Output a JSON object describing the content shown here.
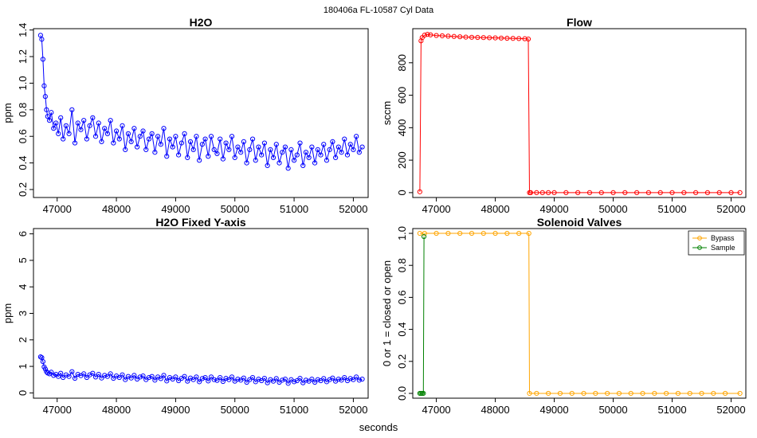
{
  "figure": {
    "supertitle": "180406a   FL-10587   Cyl Data",
    "bottom_label": "seconds"
  },
  "colors": {
    "h2o": "#0000ff",
    "flow": "#ff0000",
    "bypass": "#ffa500",
    "sample": "#008000"
  },
  "chart_data": [
    {
      "id": "h2o",
      "type": "line",
      "title": "H2O",
      "xlabel": "",
      "ylabel": "ppm",
      "xlim": [
        46600,
        52250
      ],
      "ylim": [
        0.14,
        1.41
      ],
      "x_ticks": [
        47000,
        48000,
        49000,
        50000,
        51000,
        52000
      ],
      "y_ticks": [
        0.2,
        0.4,
        0.6,
        0.8,
        1.0,
        1.2,
        1.4
      ],
      "markers": "open-circle",
      "series": [
        {
          "x": [
            46720,
            46740,
            46760,
            46780,
            46800,
            46820,
            46840,
            46870,
            46900,
            46940,
            46980,
            47020,
            47060,
            47100,
            47150,
            47200,
            47250,
            47300,
            47350,
            47400,
            47450,
            47500,
            47550,
            47600,
            47650,
            47700,
            47750,
            47800,
            47850,
            47900,
            47950,
            48000,
            48050,
            48100,
            48150,
            48200,
            48250,
            48300,
            48350,
            48400,
            48450,
            48500,
            48550,
            48600,
            48650,
            48700,
            48750,
            48800,
            48850,
            48900,
            48950,
            49000,
            49050,
            49100,
            49150,
            49200,
            49250,
            49300,
            49350,
            49400,
            49450,
            49500,
            49550,
            49600,
            49650,
            49700,
            49750,
            49800,
            49850,
            49900,
            49950,
            50000,
            50050,
            50100,
            50150,
            50200,
            50250,
            50300,
            50350,
            50400,
            50450,
            50500,
            50550,
            50600,
            50650,
            50700,
            50750,
            50800,
            50850,
            50900,
            50950,
            51000,
            51050,
            51100,
            51150,
            51200,
            51250,
            51300,
            51350,
            51400,
            51450,
            51500,
            51550,
            51600,
            51650,
            51700,
            51750,
            51800,
            51850,
            51900,
            51950,
            52000,
            52050,
            52100,
            52150
          ],
          "y": [
            1.36,
            1.33,
            1.18,
            0.98,
            0.9,
            0.8,
            0.75,
            0.72,
            0.78,
            0.66,
            0.7,
            0.62,
            0.74,
            0.58,
            0.68,
            0.62,
            0.8,
            0.55,
            0.7,
            0.65,
            0.72,
            0.58,
            0.68,
            0.74,
            0.6,
            0.7,
            0.56,
            0.66,
            0.62,
            0.72,
            0.55,
            0.64,
            0.58,
            0.68,
            0.5,
            0.62,
            0.56,
            0.66,
            0.52,
            0.6,
            0.64,
            0.5,
            0.58,
            0.62,
            0.48,
            0.6,
            0.54,
            0.66,
            0.45,
            0.58,
            0.52,
            0.6,
            0.46,
            0.55,
            0.62,
            0.44,
            0.56,
            0.5,
            0.6,
            0.42,
            0.54,
            0.58,
            0.45,
            0.6,
            0.5,
            0.47,
            0.58,
            0.43,
            0.55,
            0.5,
            0.6,
            0.44,
            0.52,
            0.48,
            0.56,
            0.4,
            0.5,
            0.58,
            0.42,
            0.52,
            0.46,
            0.55,
            0.38,
            0.5,
            0.44,
            0.54,
            0.4,
            0.48,
            0.52,
            0.36,
            0.5,
            0.42,
            0.46,
            0.55,
            0.38,
            0.48,
            0.44,
            0.52,
            0.4,
            0.5,
            0.46,
            0.54,
            0.42,
            0.5,
            0.56,
            0.44,
            0.52,
            0.48,
            0.58,
            0.46,
            0.54,
            0.5,
            0.6,
            0.48,
            0.52
          ]
        }
      ]
    },
    {
      "id": "flow",
      "type": "line",
      "title": "Flow",
      "xlabel": "",
      "ylabel": "sccm",
      "xlim": [
        46600,
        52250
      ],
      "ylim": [
        -30,
        1010
      ],
      "x_ticks": [
        47000,
        48000,
        49000,
        50000,
        51000,
        52000
      ],
      "y_ticks": [
        0,
        200,
        400,
        600,
        800
      ],
      "markers": "open-circle",
      "series": [
        {
          "x": [
            46720,
            46740,
            46760,
            46800,
            46850,
            46900,
            47000,
            47100,
            47200,
            47300,
            47400,
            47500,
            47600,
            47700,
            47800,
            47900,
            48000,
            48100,
            48200,
            48300,
            48400,
            48500,
            48560,
            48580,
            48600,
            48700,
            48800,
            48900,
            49000,
            49200,
            49400,
            49600,
            49800,
            50000,
            50200,
            50400,
            50600,
            50800,
            51000,
            51200,
            51400,
            51600,
            51800,
            52000,
            52150
          ],
          "y": [
            5,
            935,
            955,
            970,
            975,
            972,
            968,
            966,
            964,
            962,
            960,
            958,
            957,
            956,
            955,
            954,
            953,
            952,
            951,
            950,
            949,
            948,
            946,
            0,
            0,
            0,
            0,
            0,
            0,
            0,
            0,
            0,
            0,
            0,
            0,
            0,
            0,
            0,
            0,
            0,
            0,
            0,
            0,
            0,
            0
          ]
        }
      ]
    },
    {
      "id": "h2o-fixed",
      "type": "line",
      "title": "H2O Fixed Y-axis",
      "xlabel": "",
      "ylabel": "ppm",
      "xlim": [
        46600,
        52250
      ],
      "ylim": [
        -0.2,
        6.2
      ],
      "x_ticks": [
        47000,
        48000,
        49000,
        50000,
        51000,
        52000
      ],
      "y_ticks": [
        0,
        1,
        2,
        3,
        4,
        5,
        6
      ],
      "markers": "open-circle",
      "series": [
        {
          "x": [
            46720,
            46740,
            46760,
            46780,
            46800,
            46820,
            46840,
            46870,
            46900,
            46940,
            46980,
            47020,
            47060,
            47100,
            47150,
            47200,
            47250,
            47300,
            47350,
            47400,
            47450,
            47500,
            47550,
            47600,
            47650,
            47700,
            47750,
            47800,
            47850,
            47900,
            47950,
            48000,
            48050,
            48100,
            48150,
            48200,
            48250,
            48300,
            48350,
            48400,
            48450,
            48500,
            48550,
            48600,
            48650,
            48700,
            48750,
            48800,
            48850,
            48900,
            48950,
            49000,
            49050,
            49100,
            49150,
            49200,
            49250,
            49300,
            49350,
            49400,
            49450,
            49500,
            49550,
            49600,
            49650,
            49700,
            49750,
            49800,
            49850,
            49900,
            49950,
            50000,
            50050,
            50100,
            50150,
            50200,
            50250,
            50300,
            50350,
            50400,
            50450,
            50500,
            50550,
            50600,
            50650,
            50700,
            50750,
            50800,
            50850,
            50900,
            50950,
            51000,
            51050,
            51100,
            51150,
            51200,
            51250,
            51300,
            51350,
            51400,
            51450,
            51500,
            51550,
            51600,
            51650,
            51700,
            51750,
            51800,
            51850,
            51900,
            51950,
            52000,
            52050,
            52100,
            52150
          ],
          "y": [
            1.36,
            1.33,
            1.18,
            0.98,
            0.9,
            0.8,
            0.75,
            0.72,
            0.78,
            0.66,
            0.7,
            0.62,
            0.74,
            0.58,
            0.68,
            0.62,
            0.8,
            0.55,
            0.7,
            0.65,
            0.72,
            0.58,
            0.68,
            0.74,
            0.6,
            0.7,
            0.56,
            0.66,
            0.62,
            0.72,
            0.55,
            0.64,
            0.58,
            0.68,
            0.5,
            0.62,
            0.56,
            0.66,
            0.52,
            0.6,
            0.64,
            0.5,
            0.58,
            0.62,
            0.48,
            0.6,
            0.54,
            0.66,
            0.45,
            0.58,
            0.52,
            0.6,
            0.46,
            0.55,
            0.62,
            0.44,
            0.56,
            0.5,
            0.6,
            0.42,
            0.54,
            0.58,
            0.45,
            0.6,
            0.5,
            0.47,
            0.58,
            0.43,
            0.55,
            0.5,
            0.6,
            0.44,
            0.52,
            0.48,
            0.56,
            0.4,
            0.5,
            0.58,
            0.42,
            0.52,
            0.46,
            0.55,
            0.38,
            0.5,
            0.44,
            0.54,
            0.4,
            0.48,
            0.52,
            0.36,
            0.5,
            0.42,
            0.46,
            0.55,
            0.38,
            0.48,
            0.44,
            0.52,
            0.4,
            0.5,
            0.46,
            0.54,
            0.42,
            0.5,
            0.56,
            0.44,
            0.52,
            0.48,
            0.58,
            0.46,
            0.54,
            0.5,
            0.6,
            0.48,
            0.52
          ]
        }
      ]
    },
    {
      "id": "valves",
      "type": "line",
      "title": "Solenoid Valves",
      "xlabel": "",
      "ylabel": "0 or 1 = closed or open",
      "xlim": [
        46600,
        52250
      ],
      "ylim": [
        -0.03,
        1.03
      ],
      "x_ticks": [
        47000,
        48000,
        49000,
        50000,
        51000,
        52000
      ],
      "y_ticks": [
        0.0,
        0.2,
        0.4,
        0.6,
        0.8,
        1.0
      ],
      "markers": "open-circle",
      "legend": {
        "position": "top-right",
        "entries": [
          "Bypass",
          "Sample"
        ]
      },
      "series": [
        {
          "name": "Bypass",
          "x": [
            46720,
            46800,
            47000,
            47200,
            47400,
            47600,
            47800,
            48000,
            48200,
            48400,
            48570,
            48580,
            48700,
            48900,
            49100,
            49300,
            49500,
            49700,
            49900,
            50100,
            50300,
            50500,
            50700,
            50900,
            51100,
            51300,
            51500,
            51700,
            51900,
            52150
          ],
          "y": [
            1,
            1,
            1,
            1,
            1,
            1,
            1,
            1,
            1,
            1,
            1,
            0,
            0,
            0,
            0,
            0,
            0,
            0,
            0,
            0,
            0,
            0,
            0,
            0,
            0,
            0,
            0,
            0,
            0,
            0
          ]
        },
        {
          "name": "Sample",
          "x": [
            46720,
            46740,
            46760,
            46780,
            46790
          ],
          "y": [
            0,
            0,
            0,
            0,
            0.98
          ]
        }
      ]
    }
  ]
}
